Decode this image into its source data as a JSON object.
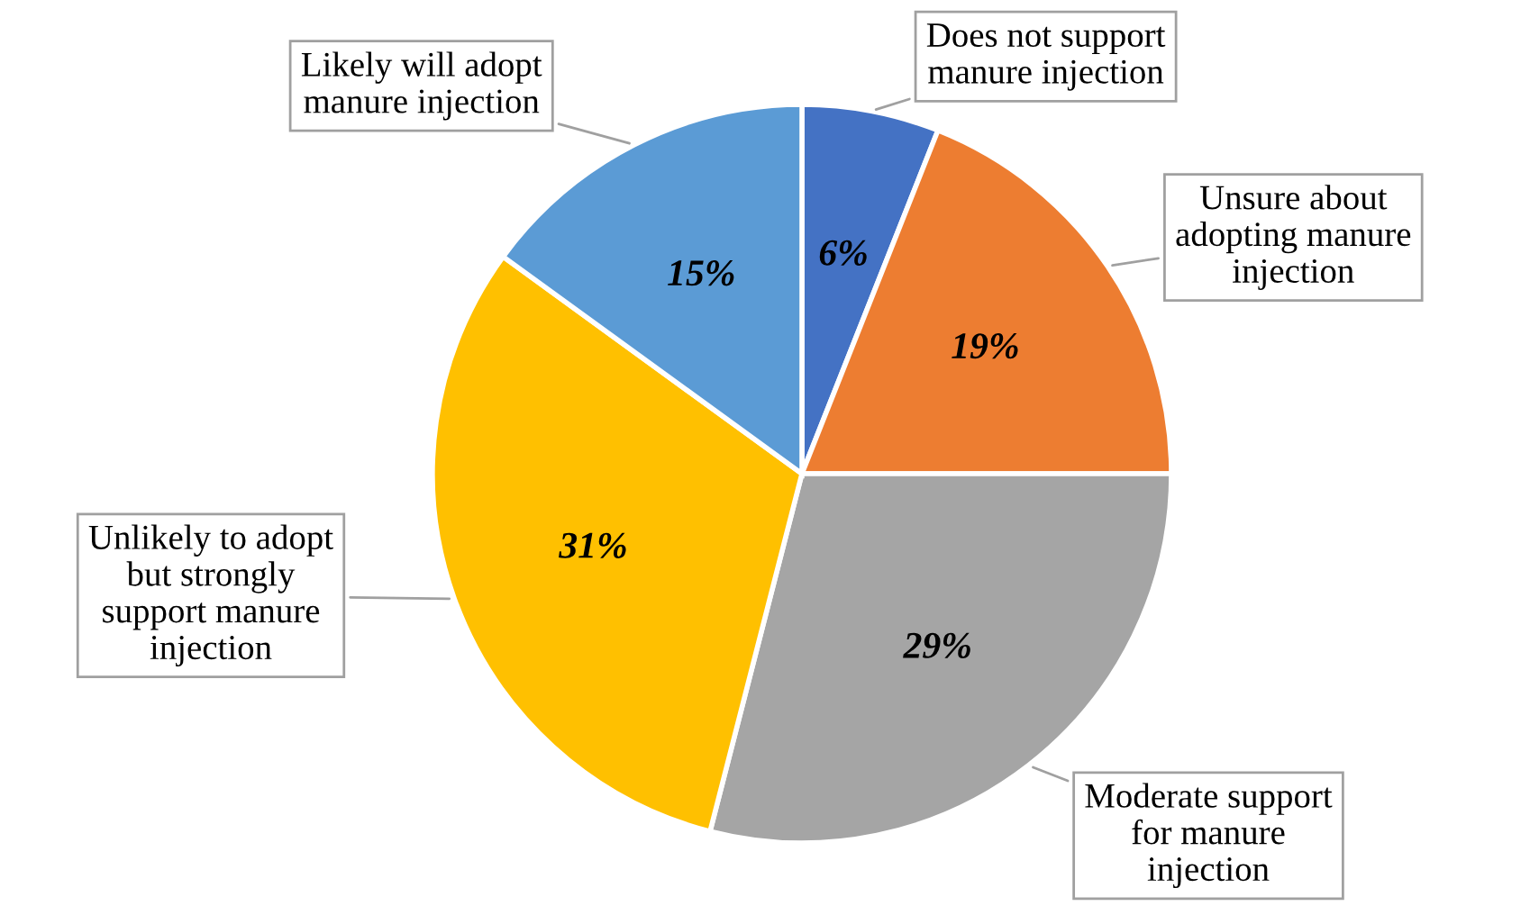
{
  "chart_data": {
    "type": "pie",
    "categories": [
      "Does not support\nmanure injection",
      "Unsure about\nadopting manure\ninjection",
      "Moderate support\nfor manure\ninjection",
      "Unlikely to adopt\nbut strongly\nsupport manure\ninjection",
      "Likely will adopt\nmanure injection"
    ],
    "values": [
      6,
      19,
      29,
      31,
      15
    ],
    "colors": [
      "#4472c4",
      "#ed7d31",
      "#a5a5a5",
      "#ffc000",
      "#5b9bd5"
    ],
    "value_labels": [
      "6%",
      "19%",
      "29%",
      "31%",
      "15%"
    ],
    "legend": false
  }
}
